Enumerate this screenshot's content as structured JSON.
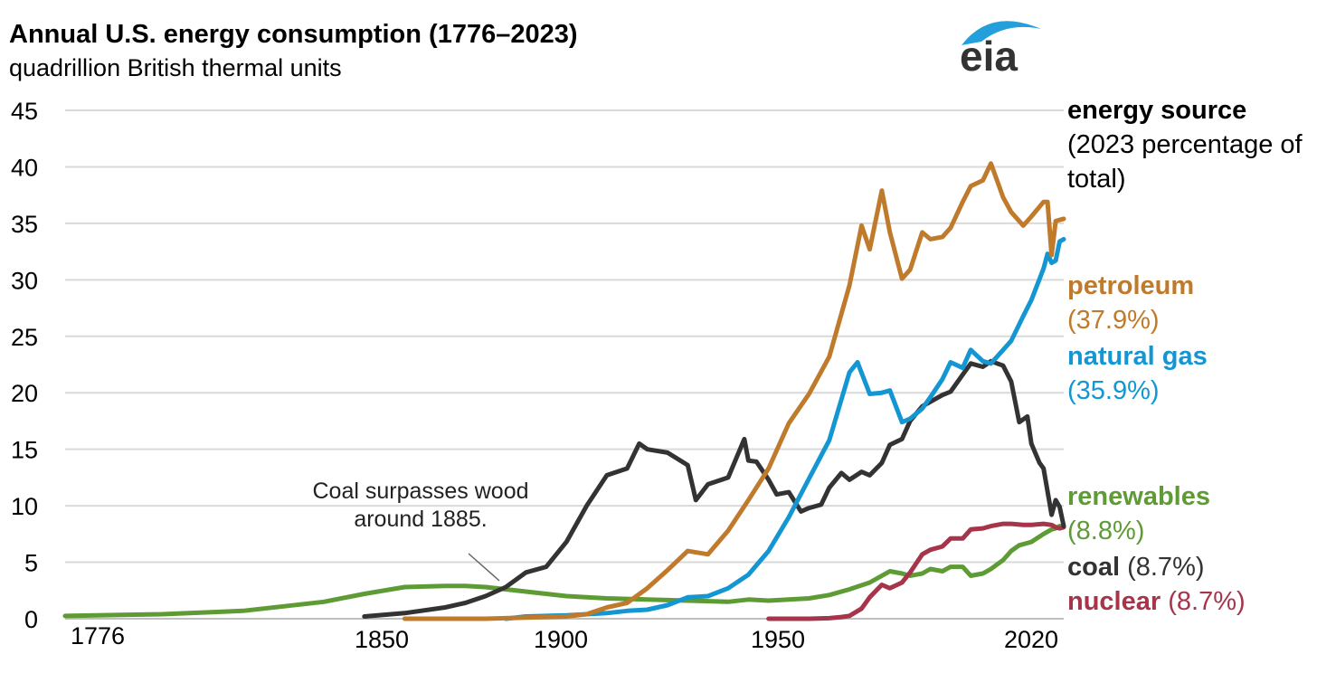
{
  "header": {
    "title": "Annual U.S. energy consumption (1776–2023)",
    "subtitle": "quadrillion British thermal units",
    "logo_text": "eia"
  },
  "legend": {
    "title": "energy source",
    "subtitle": "(2023 percentage of total)"
  },
  "annotation": "Coal surpasses wood around 1885.",
  "colors": {
    "petroleum": "#c07a2c",
    "natural_gas": "#1496d2",
    "coal": "#333333",
    "renewables": "#5e9b35",
    "nuclear": "#a6344a",
    "grid": "#d9d9d9",
    "logo_arc": "#23a0dc",
    "logo_text": "#333333"
  },
  "chart_data": {
    "type": "line",
    "title": "Annual U.S. energy consumption (1776–2023)",
    "ylabel": "quadrillion British thermal units",
    "xlabel": "",
    "xlim": [
      1776,
      2023
    ],
    "ylim": [
      0,
      45
    ],
    "yticks": [
      "0",
      "5",
      "10",
      "15",
      "20",
      "25",
      "30",
      "35",
      "40",
      "45"
    ],
    "xticks": [
      "1776",
      "1850",
      "1900",
      "1950",
      "2020"
    ],
    "grid": true,
    "series": [
      {
        "key": "petroleum",
        "name": "petroleum",
        "share": "(37.9%)",
        "x": [
          1860,
          1880,
          1890,
          1900,
          1905,
          1910,
          1915,
          1920,
          1925,
          1930,
          1935,
          1940,
          1945,
          1950,
          1955,
          1960,
          1965,
          1970,
          1973,
          1975,
          1978,
          1980,
          1983,
          1985,
          1988,
          1990,
          1993,
          1995,
          1998,
          2000,
          2003,
          2005,
          2008,
          2010,
          2013,
          2015,
          2018,
          2019,
          2020,
          2021,
          2022,
          2023
        ],
        "values": [
          0,
          0,
          0.1,
          0.2,
          0.4,
          1.0,
          1.4,
          2.7,
          4.3,
          6.0,
          5.7,
          7.8,
          10.5,
          13.3,
          17.3,
          19.9,
          23.2,
          29.5,
          34.8,
          32.7,
          37.9,
          34.2,
          30.1,
          30.9,
          34.2,
          33.6,
          33.8,
          34.6,
          36.9,
          38.3,
          38.8,
          40.3,
          37.3,
          36.0,
          34.8,
          35.6,
          36.9,
          36.9,
          32.2,
          35.2,
          35.3,
          35.4
        ]
      },
      {
        "key": "natural_gas",
        "name": "natural gas",
        "share": "(35.9%)",
        "x": [
          1885,
          1890,
          1900,
          1905,
          1910,
          1915,
          1920,
          1925,
          1930,
          1935,
          1940,
          1945,
          1950,
          1955,
          1960,
          1965,
          1970,
          1972,
          1975,
          1978,
          1980,
          1983,
          1985,
          1988,
          1990,
          1993,
          1995,
          1998,
          2000,
          2003,
          2005,
          2008,
          2010,
          2013,
          2015,
          2018,
          2019,
          2020,
          2021,
          2022,
          2023
        ],
        "values": [
          0,
          0.2,
          0.3,
          0.4,
          0.5,
          0.7,
          0.8,
          1.2,
          1.9,
          2.0,
          2.7,
          3.9,
          6.0,
          9.0,
          12.4,
          15.8,
          21.8,
          22.7,
          19.9,
          20.0,
          20.2,
          17.4,
          17.7,
          18.6,
          19.6,
          21.2,
          22.7,
          22.2,
          23.8,
          22.8,
          22.6,
          23.8,
          24.6,
          26.8,
          28.2,
          31.0,
          32.3,
          31.5,
          31.7,
          33.4,
          33.6
        ]
      },
      {
        "key": "coal",
        "name": "coal",
        "share": "(8.7%)",
        "x": [
          1850,
          1860,
          1870,
          1875,
          1880,
          1885,
          1890,
          1895,
          1900,
          1905,
          1910,
          1915,
          1918,
          1920,
          1925,
          1930,
          1932,
          1935,
          1940,
          1944,
          1945,
          1947,
          1950,
          1952,
          1955,
          1958,
          1960,
          1963,
          1965,
          1968,
          1970,
          1973,
          1975,
          1978,
          1980,
          1983,
          1985,
          1988,
          1990,
          1993,
          1995,
          1998,
          2000,
          2003,
          2005,
          2008,
          2010,
          2012,
          2014,
          2015,
          2017,
          2018,
          2020,
          2021,
          2022,
          2023
        ],
        "values": [
          0.2,
          0.5,
          1.0,
          1.4,
          2.0,
          2.8,
          4.1,
          4.6,
          6.8,
          10.0,
          12.7,
          13.3,
          15.5,
          15.0,
          14.7,
          13.6,
          10.5,
          11.9,
          12.5,
          15.9,
          14.0,
          13.9,
          12.3,
          11.0,
          11.2,
          9.5,
          9.8,
          10.1,
          11.6,
          12.9,
          12.3,
          13.0,
          12.7,
          13.8,
          15.4,
          15.9,
          17.5,
          18.8,
          19.2,
          19.8,
          20.1,
          21.6,
          22.6,
          22.3,
          22.8,
          22.4,
          21.0,
          17.4,
          17.9,
          15.5,
          13.8,
          13.3,
          9.2,
          10.5,
          9.9,
          8.2
        ]
      },
      {
        "key": "renewables",
        "name": "renewables",
        "share": "(8.8%)",
        "x": [
          1776,
          1800,
          1820,
          1840,
          1850,
          1860,
          1870,
          1875,
          1880,
          1885,
          1890,
          1895,
          1900,
          1910,
          1920,
          1930,
          1940,
          1945,
          1950,
          1955,
          1960,
          1965,
          1970,
          1975,
          1980,
          1983,
          1985,
          1988,
          1990,
          1993,
          1995,
          1998,
          2000,
          2003,
          2005,
          2008,
          2010,
          2012,
          2015,
          2018,
          2020,
          2021,
          2022,
          2023
        ],
        "values": [
          0.25,
          0.4,
          0.7,
          1.5,
          2.2,
          2.8,
          2.9,
          2.9,
          2.8,
          2.6,
          2.4,
          2.2,
          2.0,
          1.8,
          1.7,
          1.6,
          1.5,
          1.7,
          1.6,
          1.7,
          1.8,
          2.1,
          2.6,
          3.2,
          4.2,
          4.0,
          3.8,
          4.0,
          4.4,
          4.2,
          4.6,
          4.6,
          3.8,
          4.0,
          4.4,
          5.2,
          6.0,
          6.5,
          6.8,
          7.5,
          7.9,
          8.0,
          8.2,
          8.2
        ]
      },
      {
        "key": "nuclear",
        "name": "nuclear",
        "share": "(8.7%)",
        "x": [
          1950,
          1955,
          1957,
          1960,
          1965,
          1968,
          1970,
          1973,
          1975,
          1978,
          1980,
          1983,
          1985,
          1988,
          1990,
          1993,
          1995,
          1998,
          2000,
          2003,
          2005,
          2008,
          2010,
          2013,
          2015,
          2018,
          2020,
          2021,
          2022,
          2023
        ],
        "values": [
          0,
          0,
          0,
          0,
          0.05,
          0.15,
          0.25,
          0.9,
          1.9,
          3.0,
          2.7,
          3.2,
          4.1,
          5.7,
          6.1,
          6.4,
          7.1,
          7.1,
          7.9,
          8.0,
          8.2,
          8.4,
          8.4,
          8.3,
          8.3,
          8.4,
          8.3,
          8.1,
          8.0,
          8.1
        ]
      }
    ],
    "annotations": [
      {
        "text": "Coal surpasses wood around 1885.",
        "x": 1885
      }
    ]
  }
}
